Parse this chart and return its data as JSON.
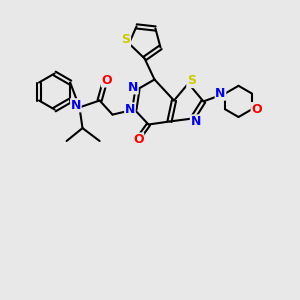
{
  "bg_color": "#e8e8e8",
  "bond_color": "#000000",
  "bond_width": 1.5,
  "atom_colors": {
    "N": "#0000FF",
    "O": "#FF0000",
    "S": "#CCCC00",
    "C": "#000000"
  },
  "font_size_atom": 9,
  "fig_size": [
    3.0,
    3.0
  ],
  "dpi": 100
}
